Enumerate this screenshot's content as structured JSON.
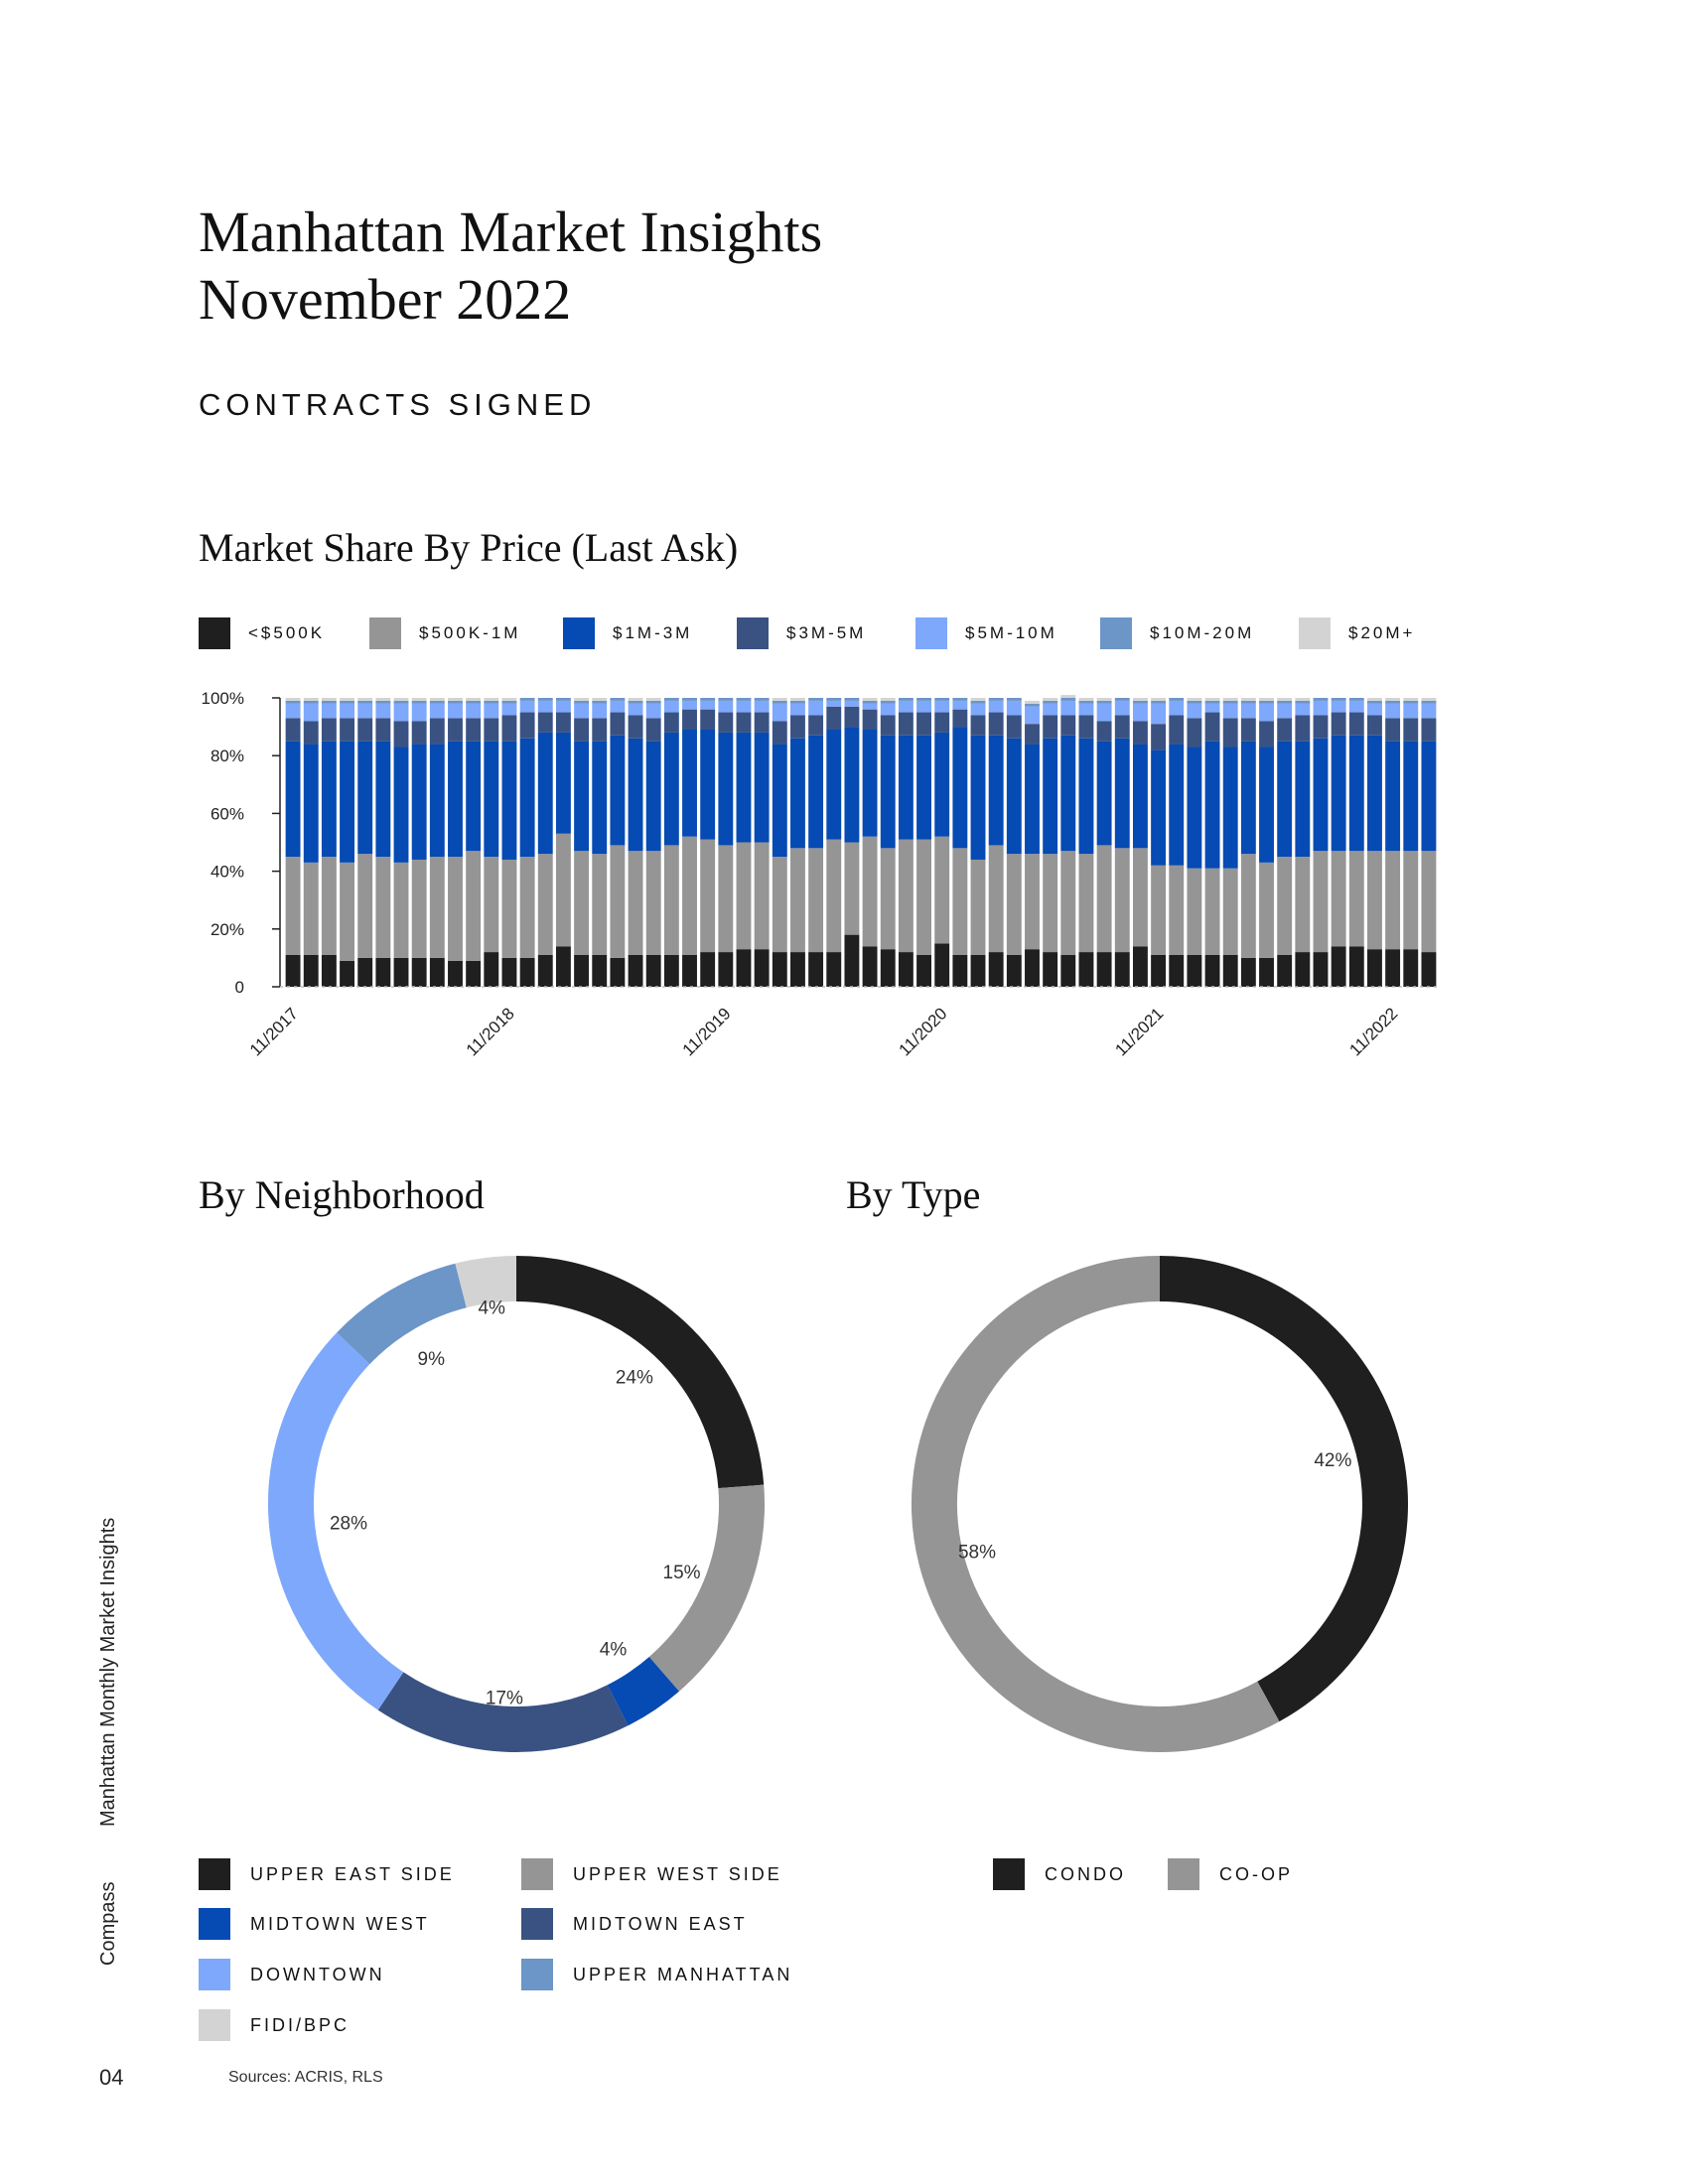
{
  "header": {
    "title_line1": "Manhattan Market Insights",
    "title_line2": "November 2022",
    "section": "CONTRACTS SIGNED"
  },
  "titles": {
    "market_share": "Market Share By Price (Last Ask)",
    "neighborhood": "By Neighborhood",
    "type": "By Type"
  },
  "footer": {
    "side_title": "Manhattan Monthly Market Insights",
    "brand": "Compass",
    "page": "04",
    "sources": "Sources: ACRIS, RLS"
  },
  "price_legend": [
    {
      "label": "<$500K",
      "color": "#1f1f1f"
    },
    {
      "label": "$500K-1M",
      "color": "#959595"
    },
    {
      "label": "$1M-3M",
      "color": "#064ab3"
    },
    {
      "label": "$3M-5M",
      "color": "#3a5282"
    },
    {
      "label": "$5M-10M",
      "color": "#7ea8fb"
    },
    {
      "label": "$10M-20M",
      "color": "#6c95c8"
    },
    {
      "label": "$20M+",
      "color": "#d3d3d3"
    }
  ],
  "neighborhood_legend": [
    {
      "label": "UPPER EAST SIDE",
      "color": "#1f1f1f"
    },
    {
      "label": "UPPER WEST SIDE",
      "color": "#959595"
    },
    {
      "label": "MIDTOWN WEST",
      "color": "#064ab3"
    },
    {
      "label": "MIDTOWN EAST",
      "color": "#3a5282"
    },
    {
      "label": "DOWNTOWN",
      "color": "#7ea8fb"
    },
    {
      "label": "UPPER MANHATTAN",
      "color": "#6c95c8"
    },
    {
      "label": "FIDI/BPC",
      "color": "#d3d3d3"
    }
  ],
  "type_legend": [
    {
      "label": "CONDO",
      "color": "#1f1f1f"
    },
    {
      "label": "CO-OP",
      "color": "#959595"
    }
  ],
  "chart_data": [
    {
      "type": "bar",
      "stacked": true,
      "title": "Market Share By Price (Last Ask)",
      "y_tick_labels": [
        "0",
        "20%",
        "40%",
        "60%",
        "80%",
        "100%"
      ],
      "ylim": [
        0,
        100
      ],
      "x_tick_labels": [
        "11/2017",
        "11/2018",
        "11/2019",
        "11/2020",
        "11/2021",
        "11/2022"
      ],
      "series": [
        {
          "name": "<$500K",
          "color": "#1f1f1f",
          "values": [
            11,
            11,
            11,
            9,
            10,
            10,
            10,
            10,
            10,
            9,
            9,
            12,
            10,
            10,
            11,
            14,
            11,
            11,
            10,
            11,
            11,
            11,
            11,
            12,
            12,
            13,
            13,
            12,
            12,
            12,
            12,
            18,
            14,
            13,
            12,
            11,
            15,
            11,
            11,
            12,
            11,
            13,
            12,
            11,
            12,
            12,
            12,
            14,
            11,
            11,
            11,
            11,
            11,
            10,
            10,
            11,
            12,
            12,
            14,
            14,
            13,
            13,
            13,
            12
          ]
        },
        {
          "name": "$500K-1M",
          "color": "#959595",
          "values": [
            34,
            32,
            34,
            34,
            36,
            35,
            33,
            34,
            35,
            36,
            38,
            33,
            34,
            35,
            35,
            39,
            36,
            35,
            39,
            36,
            36,
            38,
            41,
            39,
            37,
            37,
            37,
            33,
            36,
            36,
            39,
            32,
            38,
            35,
            39,
            40,
            37,
            37,
            33,
            37,
            35,
            33,
            34,
            36,
            34,
            37,
            36,
            34,
            31,
            31,
            30,
            30,
            30,
            36,
            33,
            34,
            33,
            35,
            33,
            33,
            34,
            34,
            34,
            35
          ]
        },
        {
          "name": "$1M-3M",
          "color": "#064ab3",
          "values": [
            40,
            41,
            40,
            42,
            39,
            40,
            40,
            40,
            39,
            40,
            38,
            40,
            41,
            41,
            42,
            35,
            38,
            39,
            38,
            39,
            38,
            39,
            37,
            38,
            39,
            38,
            38,
            39,
            38,
            39,
            38,
            40,
            37,
            39,
            36,
            36,
            36,
            42,
            43,
            38,
            40,
            38,
            40,
            40,
            40,
            36,
            38,
            36,
            40,
            42,
            42,
            44,
            42,
            39,
            40,
            40,
            40,
            39,
            40,
            40,
            40,
            38,
            38,
            38
          ]
        },
        {
          "name": "$3M-5M",
          "color": "#3a5282",
          "values": [
            8,
            8,
            8,
            8,
            8,
            8,
            9,
            8,
            9,
            8,
            8,
            8,
            9,
            9,
            7,
            7,
            8,
            8,
            8,
            8,
            8,
            7,
            7,
            7,
            7,
            7,
            7,
            8,
            8,
            7,
            8,
            7,
            7,
            7,
            8,
            8,
            7,
            6,
            7,
            8,
            8,
            7,
            8,
            7,
            8,
            7,
            8,
            8,
            9,
            10,
            10,
            10,
            10,
            8,
            9,
            8,
            9,
            8,
            8,
            8,
            7,
            8,
            8,
            8
          ]
        },
        {
          "name": "$5M-10M",
          "color": "#7ea8fb",
          "values": [
            5,
            6,
            5,
            5,
            5,
            5,
            6,
            6,
            5,
            5,
            5,
            5,
            4,
            4,
            4,
            4,
            5,
            5,
            4,
            4,
            5,
            4,
            3,
            3,
            4,
            4,
            4,
            6,
            4,
            5,
            2,
            2,
            2,
            4,
            4,
            4,
            4,
            3,
            4,
            4,
            5,
            6,
            4,
            5,
            4,
            6,
            5,
            6,
            7,
            5,
            5,
            3,
            5,
            5,
            6,
            5,
            4,
            5,
            4,
            4,
            4,
            5,
            5,
            5
          ]
        },
        {
          "name": "$10M-20M",
          "color": "#6c95c8",
          "values": [
            1,
            1,
            1,
            1,
            1,
            1,
            1,
            1,
            1,
            1,
            1,
            1,
            1,
            1,
            1,
            1,
            1,
            1,
            1,
            1,
            1,
            1,
            1,
            1,
            1,
            1,
            1,
            1,
            1,
            1,
            1,
            1,
            1,
            1,
            1,
            1,
            1,
            1,
            1,
            1,
            1,
            1,
            1,
            1,
            1,
            1,
            1,
            1,
            1,
            1,
            1,
            1,
            1,
            1,
            1,
            1,
            1,
            1,
            1,
            1,
            1,
            1,
            1,
            1
          ]
        },
        {
          "name": "$20M+",
          "color": "#d3d3d3",
          "values": [
            1,
            1,
            1,
            1,
            1,
            1,
            1,
            1,
            1,
            1,
            1,
            1,
            1,
            0,
            0,
            0,
            1,
            1,
            0,
            1,
            1,
            0,
            0,
            0,
            0,
            0,
            0,
            1,
            1,
            0,
            0,
            0,
            1,
            1,
            0,
            0,
            0,
            0,
            1,
            0,
            0,
            1,
            1,
            1,
            1,
            1,
            0,
            1,
            1,
            0,
            1,
            1,
            1,
            1,
            1,
            1,
            1,
            0,
            0,
            0,
            1,
            1,
            1,
            1
          ]
        }
      ]
    },
    {
      "type": "pie",
      "donut": true,
      "title": "By Neighborhood",
      "labels": [
        "UPPER EAST SIDE",
        "UPPER WEST SIDE",
        "MIDTOWN WEST",
        "MIDTOWN EAST",
        "DOWNTOWN",
        "UPPER MANHATTAN",
        "FIDI/BPC"
      ],
      "values": [
        24,
        15,
        4,
        17,
        28,
        9,
        4
      ],
      "value_labels": [
        "24%",
        "15%",
        "4%",
        "17%",
        "28%",
        "9%",
        "4%"
      ],
      "colors": [
        "#1f1f1f",
        "#959595",
        "#064ab3",
        "#3a5282",
        "#7ea8fb",
        "#6c95c8",
        "#d3d3d3"
      ]
    },
    {
      "type": "pie",
      "donut": true,
      "title": "By Type",
      "labels": [
        "CONDO",
        "CO-OP"
      ],
      "values": [
        42,
        58
      ],
      "value_labels": [
        "42%",
        "58%"
      ],
      "colors": [
        "#1f1f1f",
        "#959595"
      ]
    }
  ]
}
